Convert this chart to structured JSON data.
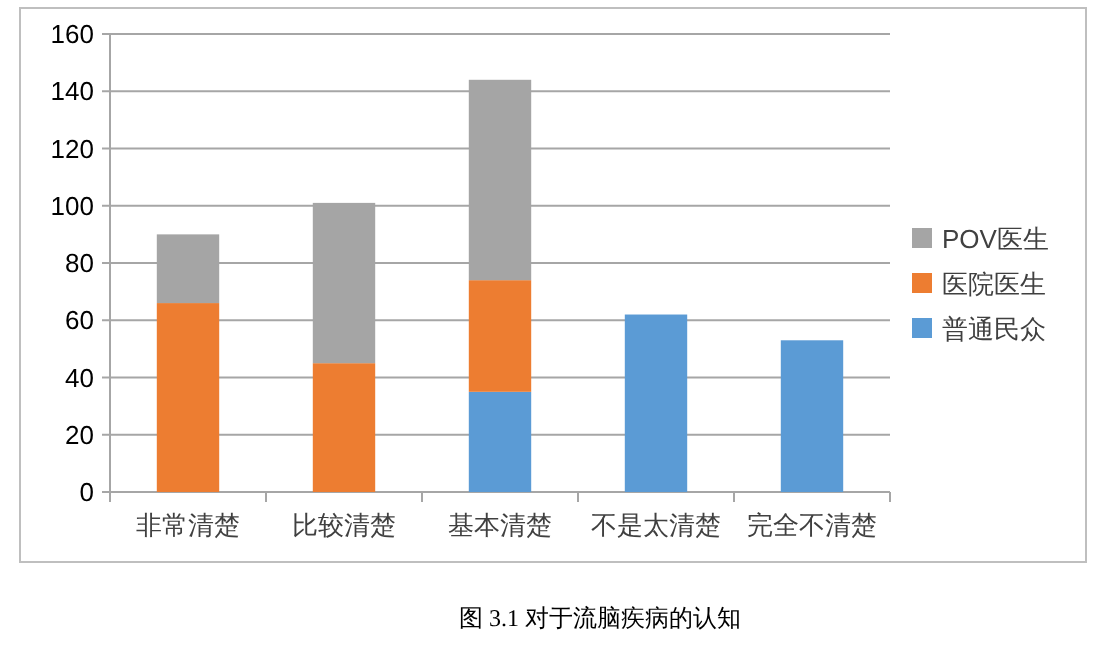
{
  "chart_data": {
    "type": "bar",
    "stacked": true,
    "categories": [
      "非常清楚",
      "比较清楚",
      "基本清楚",
      "不是太清楚",
      "完全不清楚"
    ],
    "series": [
      {
        "name": "普通民众",
        "color": "#5b9bd5",
        "values": [
          null,
          null,
          35,
          62,
          53
        ]
      },
      {
        "name": "医院医生",
        "color": "#ed7d31",
        "values": [
          66,
          45,
          39,
          null,
          null
        ]
      },
      {
        "name": "POV医生",
        "color": "#a5a5a5",
        "values": [
          24,
          56,
          70,
          null,
          null
        ]
      }
    ],
    "ylim": [
      0,
      160
    ],
    "yticks": [
      0,
      20,
      40,
      60,
      80,
      100,
      120,
      140,
      160
    ],
    "grid": "y",
    "legend": "right",
    "annotations": [
      "图 3.1 对于流脑疾病的认知"
    ]
  }
}
